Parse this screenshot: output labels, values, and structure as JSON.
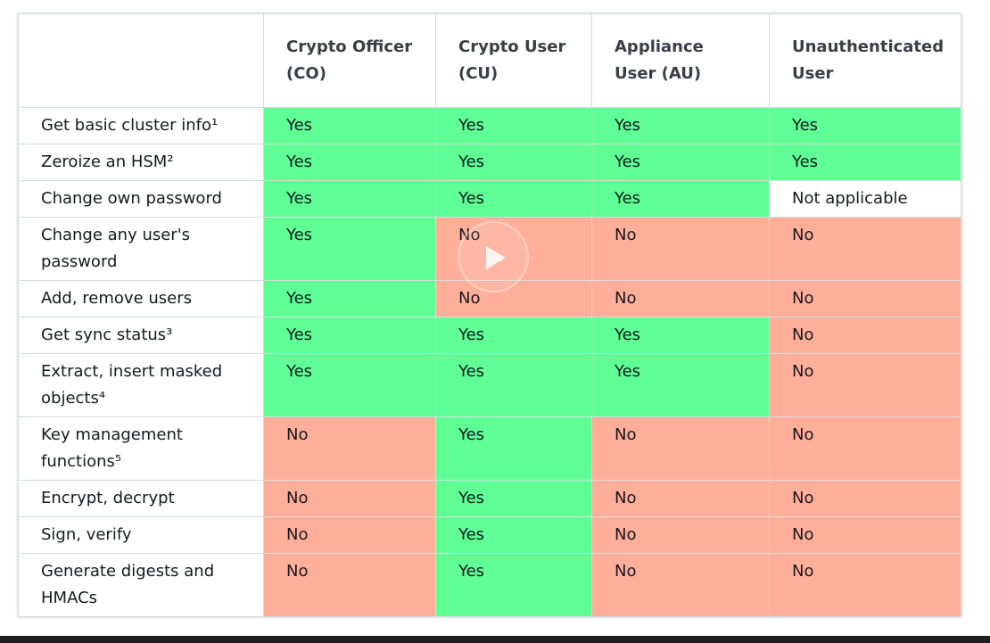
{
  "table": {
    "headers": [
      "",
      "Crypto Officer (CO)",
      "Crypto User (CU)",
      "Appliance User (AU)",
      "Unauthenticated User"
    ],
    "rows": [
      {
        "label": "Get basic cluster info¹",
        "values": [
          "Yes",
          "Yes",
          "Yes",
          "Yes"
        ]
      },
      {
        "label": "Zeroize an HSM²",
        "values": [
          "Yes",
          "Yes",
          "Yes",
          "Yes"
        ]
      },
      {
        "label": "Change own password",
        "values": [
          "Yes",
          "Yes",
          "Yes",
          "Not applicable"
        ]
      },
      {
        "label": "Change any user's password",
        "values": [
          "Yes",
          "No",
          "No",
          "No"
        ]
      },
      {
        "label": "Add, remove users",
        "values": [
          "Yes",
          "No",
          "No",
          "No"
        ]
      },
      {
        "label": "Get sync status³",
        "values": [
          "Yes",
          "Yes",
          "Yes",
          "No"
        ]
      },
      {
        "label": "Extract, insert masked objects⁴",
        "values": [
          "Yes",
          "Yes",
          "Yes",
          "No"
        ]
      },
      {
        "label": "Key management functions⁵",
        "values": [
          "No",
          "Yes",
          "No",
          "No"
        ]
      },
      {
        "label": "Encrypt, decrypt",
        "values": [
          "No",
          "Yes",
          "No",
          "No"
        ]
      },
      {
        "label": "Sign, verify",
        "values": [
          "No",
          "Yes",
          "No",
          "No"
        ]
      },
      {
        "label": "Generate digests and HMACs",
        "values": [
          "No",
          "Yes",
          "No",
          "No"
        ]
      }
    ]
  },
  "colors": {
    "yes": "#5fff95",
    "no": "#ffae99",
    "not_applicable": "#ffffff"
  },
  "overlay": {
    "icon": "play-icon"
  }
}
